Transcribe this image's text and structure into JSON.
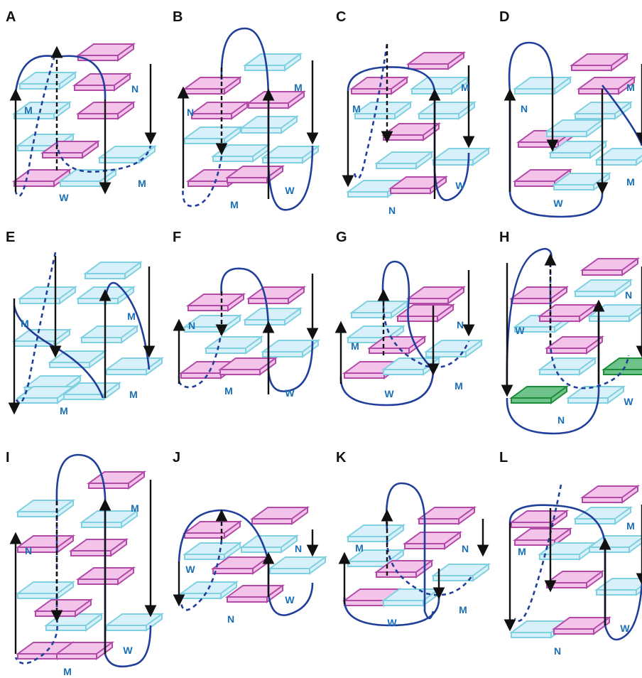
{
  "colors": {
    "anti_tetrad": "#f3c3e9",
    "anti_tetrad_edge": "#b24aa8",
    "syn_tetrad": "#d8f0fa",
    "syn_tetrad_edge": "#7fd0e0",
    "extra_tetrad": "#6ec38a",
    "extra_tetrad_edge": "#1f8c3c",
    "loop": "#1f3f9a",
    "strand_arrow": "#111111",
    "groove_label": "#1a6fb6"
  },
  "panels": [
    {
      "label": "A",
      "grooves": [
        "N",
        "M",
        "M",
        "W"
      ]
    },
    {
      "label": "B",
      "grooves": [
        "N",
        "M",
        "W",
        "M"
      ]
    },
    {
      "label": "C",
      "grooves": [
        "M",
        "M",
        "W",
        "N"
      ]
    },
    {
      "label": "D",
      "grooves": [
        "N",
        "M",
        "M",
        "W"
      ]
    },
    {
      "label": "E",
      "grooves": [
        "M",
        "M",
        "M",
        "M"
      ]
    },
    {
      "label": "F",
      "grooves": [
        "N",
        "W",
        "M"
      ]
    },
    {
      "label": "G",
      "grooves": [
        "M",
        "N",
        "M",
        "W"
      ]
    },
    {
      "label": "H",
      "grooves": [
        "W",
        "N",
        "W",
        "N"
      ]
    },
    {
      "label": "I",
      "grooves": [
        "N",
        "M",
        "W",
        "M"
      ]
    },
    {
      "label": "J",
      "grooves": [
        "W",
        "N",
        "W",
        "N"
      ]
    },
    {
      "label": "K",
      "grooves": [
        "M",
        "N",
        "M",
        "W"
      ]
    },
    {
      "label": "L",
      "grooves": [
        "M",
        "M",
        "W",
        "N"
      ]
    }
  ]
}
